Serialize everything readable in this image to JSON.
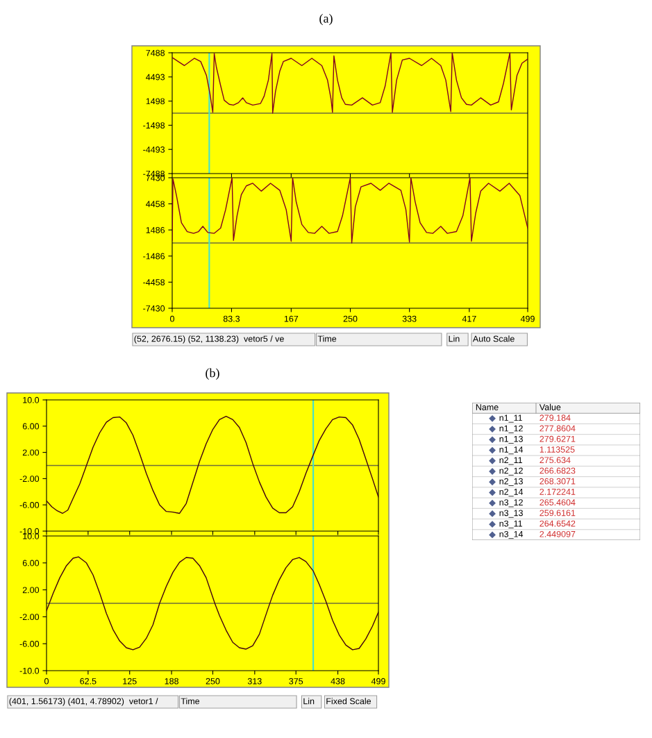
{
  "chart_data": [
    {
      "type": "line",
      "title": "(a)",
      "xlim": [
        0,
        499
      ],
      "ylim": [
        -7488,
        7488
      ],
      "xticks": [
        0,
        83.3,
        167,
        250,
        333,
        417,
        499
      ],
      "yticks": [
        7488,
        4493,
        1498,
        -1498,
        -4493,
        -7488
      ],
      "tick_labels": "y",
      "grid": false,
      "legend": false,
      "marker": "none",
      "line_style": "solid",
      "ref_lines": [
        {
          "axis": "y",
          "value": 0,
          "color": "#6e6e3a"
        },
        {
          "axis": "x",
          "value": 52,
          "color": "#40e0d0"
        }
      ],
      "series": [
        {
          "color": "#800020",
          "x": [
            0,
            17,
            31,
            40,
            48,
            53,
            57,
            59,
            62,
            68,
            73,
            80,
            86,
            93,
            99,
            104,
            113,
            124,
            129,
            135,
            140,
            141,
            145,
            151,
            156,
            167,
            182,
            196,
            210,
            218,
            223,
            225,
            227,
            232,
            238,
            243,
            252,
            267,
            281,
            292,
            299,
            307,
            309,
            315,
            323,
            333,
            350,
            364,
            377,
            384,
            391,
            393,
            399,
            406,
            413,
            420,
            433,
            447,
            458,
            465,
            474,
            476,
            484,
            491,
            499
          ],
          "values": [
            6900,
            5900,
            6800,
            6400,
            4700,
            2400,
            100,
            7400,
            5700,
            3400,
            1600,
            1100,
            1000,
            1300,
            1900,
            1300,
            1000,
            1200,
            2100,
            4100,
            7400,
            0,
            2700,
            5200,
            6400,
            6800,
            5900,
            6800,
            5900,
            4100,
            1700,
            100,
            7100,
            4100,
            1900,
            1100,
            1000,
            1900,
            1000,
            1300,
            3400,
            7488,
            100,
            4100,
            6600,
            6800,
            5900,
            6800,
            5900,
            4100,
            200,
            7488,
            4100,
            1900,
            1100,
            1000,
            1900,
            1000,
            1400,
            3700,
            7488,
            400,
            4700,
            6200,
            6700
          ]
        }
      ]
    },
    {
      "type": "line",
      "xlim": [
        0,
        499
      ],
      "ylim": [
        -7430,
        7430
      ],
      "xticks": [
        0,
        83.3,
        167,
        250,
        333,
        417,
        499
      ],
      "yticks": [
        7430,
        4458,
        1486,
        -1486,
        -4458,
        -7430
      ],
      "grid": false,
      "legend": false,
      "marker": "none",
      "line_style": "solid",
      "ref_lines": [
        {
          "axis": "y",
          "value": 0,
          "color": "#6e6e3a"
        },
        {
          "axis": "x",
          "value": 52,
          "color": "#40e0d0"
        }
      ],
      "annotations": [
        "(52, 2676.15) (52, 1138.23)  vetor5 / ve",
        "Time",
        "Lin",
        "Auto Scale"
      ],
      "series": [
        {
          "color": "#800020",
          "x": [
            0,
            1,
            6,
            13,
            21,
            30,
            37,
            43,
            50,
            59,
            68,
            75,
            84,
            86,
            91,
            97,
            104,
            113,
            125,
            138,
            151,
            160,
            167,
            169,
            174,
            182,
            191,
            200,
            210,
            220,
            232,
            239,
            250,
            252,
            257,
            265,
            279,
            292,
            304,
            321,
            328,
            333,
            335,
            341,
            348,
            357,
            366,
            377,
            386,
            399,
            408,
            418,
            420,
            426,
            433,
            444,
            460,
            473,
            488,
            499
          ],
          "values": [
            300,
            7300,
            5400,
            2300,
            1300,
            1100,
            1300,
            1900,
            1200,
            1100,
            1700,
            3800,
            7430,
            300,
            3100,
            5500,
            6500,
            6800,
            5900,
            6800,
            6000,
            3800,
            200,
            7430,
            4700,
            2100,
            1200,
            1100,
            1900,
            1100,
            1300,
            3100,
            7430,
            0,
            4100,
            6400,
            6800,
            6000,
            6800,
            6000,
            3800,
            100,
            7430,
            4700,
            2300,
            1200,
            1100,
            1900,
            1100,
            1300,
            3100,
            7430,
            200,
            3400,
            5900,
            6800,
            5900,
            6800,
            5400,
            1700
          ]
        }
      ]
    },
    {
      "type": "line",
      "title": "(b)",
      "xlim": [
        0,
        499
      ],
      "ylim": [
        -10,
        10
      ],
      "xticks": [
        0,
        62.5,
        125,
        188,
        250,
        313,
        375,
        438,
        499
      ],
      "yticks": [
        {
          "value": 10,
          "label": "10.0"
        },
        {
          "value": 6,
          "label": "6.00"
        },
        {
          "value": 2,
          "label": "2.00"
        },
        {
          "value": -2,
          "label": "-2.00"
        },
        {
          "value": -6,
          "label": "-6.00"
        },
        {
          "value": -10,
          "label": "-10.0"
        }
      ],
      "tick_labels": "y",
      "grid": false,
      "legend": false,
      "marker": "none",
      "line_style": "solid",
      "ref_lines": [
        {
          "axis": "y",
          "value": 0,
          "color": "#6e6e3a"
        },
        {
          "axis": "x",
          "value": 401,
          "color": "#40e0d0"
        }
      ],
      "series": [
        {
          "color": "#400010",
          "x": [
            0,
            8,
            16,
            24,
            32,
            40,
            50,
            60,
            70,
            80,
            90,
            100,
            110,
            120,
            130,
            140,
            150,
            160,
            170,
            180,
            190,
            200,
            210,
            220,
            230,
            240,
            250,
            260,
            270,
            280,
            290,
            300,
            310,
            320,
            330,
            340,
            350,
            360,
            370,
            380,
            390,
            401,
            410,
            420,
            430,
            440,
            450,
            460,
            470,
            480,
            490,
            499
          ],
          "values": [
            -5.4,
            -6.3,
            -6.9,
            -7.3,
            -6.8,
            -5.0,
            -2.8,
            0.0,
            2.8,
            5.0,
            6.6,
            7.3,
            7.4,
            6.5,
            4.6,
            1.8,
            -1.2,
            -3.8,
            -6.0,
            -7.0,
            -7.1,
            -7.3,
            -5.8,
            -2.6,
            0.6,
            3.3,
            5.5,
            7.0,
            7.5,
            7.0,
            5.8,
            3.5,
            0.3,
            -2.5,
            -4.8,
            -6.5,
            -7.2,
            -7.2,
            -6.3,
            -4.0,
            -1.2,
            1.6,
            3.8,
            5.6,
            7.0,
            7.4,
            7.3,
            6.2,
            4.0,
            1.0,
            -2.0,
            -4.8
          ]
        }
      ]
    },
    {
      "type": "line",
      "xlim": [
        0,
        499
      ],
      "ylim": [
        -10,
        10
      ],
      "xticks": [
        0,
        62.5,
        125,
        188,
        250,
        313,
        375,
        438,
        499
      ],
      "yticks": [
        {
          "value": 10,
          "label": "10.0"
        },
        {
          "value": 6,
          "label": "6.00"
        },
        {
          "value": 2,
          "label": "2.00"
        },
        {
          "value": -2,
          "label": "-2.00"
        },
        {
          "value": -6,
          "label": "-6.00"
        },
        {
          "value": -10,
          "label": "-10.0"
        }
      ],
      "grid": false,
      "legend": false,
      "marker": "none",
      "line_style": "solid",
      "ref_lines": [
        {
          "axis": "y",
          "value": 0,
          "color": "#6e6e3a"
        },
        {
          "axis": "x",
          "value": 401,
          "color": "#40e0d0"
        }
      ],
      "annotations": [
        "(401, 1.56173) (401, 4.78902)  vetor1 / ",
        "Time",
        "Lin",
        "Fixed Scale"
      ],
      "series": [
        {
          "color": "#400010",
          "x": [
            0,
            10,
            20,
            30,
            40,
            48,
            60,
            70,
            80,
            90,
            100,
            110,
            120,
            130,
            140,
            150,
            160,
            170,
            180,
            190,
            200,
            210,
            220,
            230,
            240,
            253,
            260,
            270,
            280,
            290,
            300,
            310,
            320,
            334,
            340,
            350,
            360,
            370,
            380,
            390,
            401,
            410,
            420,
            430,
            440,
            450,
            460,
            470,
            480,
            490,
            499
          ],
          "values": [
            -1.1,
            1.5,
            3.8,
            5.6,
            6.7,
            6.9,
            6.0,
            4.2,
            1.5,
            -1.5,
            -3.9,
            -5.6,
            -6.6,
            -6.9,
            -6.5,
            -5.2,
            -3.2,
            0.0,
            2.5,
            4.6,
            6.1,
            6.8,
            6.7,
            5.6,
            3.8,
            0.0,
            -1.8,
            -4.0,
            -5.8,
            -6.6,
            -6.8,
            -6.3,
            -4.6,
            -0.5,
            1.2,
            3.5,
            5.3,
            6.5,
            6.8,
            6.2,
            4.8,
            2.8,
            0.3,
            -2.5,
            -4.7,
            -6.2,
            -6.9,
            -6.7,
            -5.3,
            -3.4,
            -1.3
          ]
        }
      ]
    },
    {
      "type": "other",
      "annotations": [
        "Name",
        "Value"
      ],
      "color": "#d03030",
      "data_labels": true,
      "categories": [
        "n1_11",
        "n1_12",
        "n1_13",
        "n1_14",
        "n2_11",
        "n2_12",
        "n2_13",
        "n2_14",
        "n3_12",
        "n3_13",
        "n3_11",
        "n3_14"
      ],
      "values": [
        279.184,
        277.8604,
        279.6271,
        1.113525,
        275.634,
        266.6823,
        268.3071,
        2.172241,
        265.4604,
        259.6161,
        264.6542,
        2.449097
      ]
    }
  ]
}
